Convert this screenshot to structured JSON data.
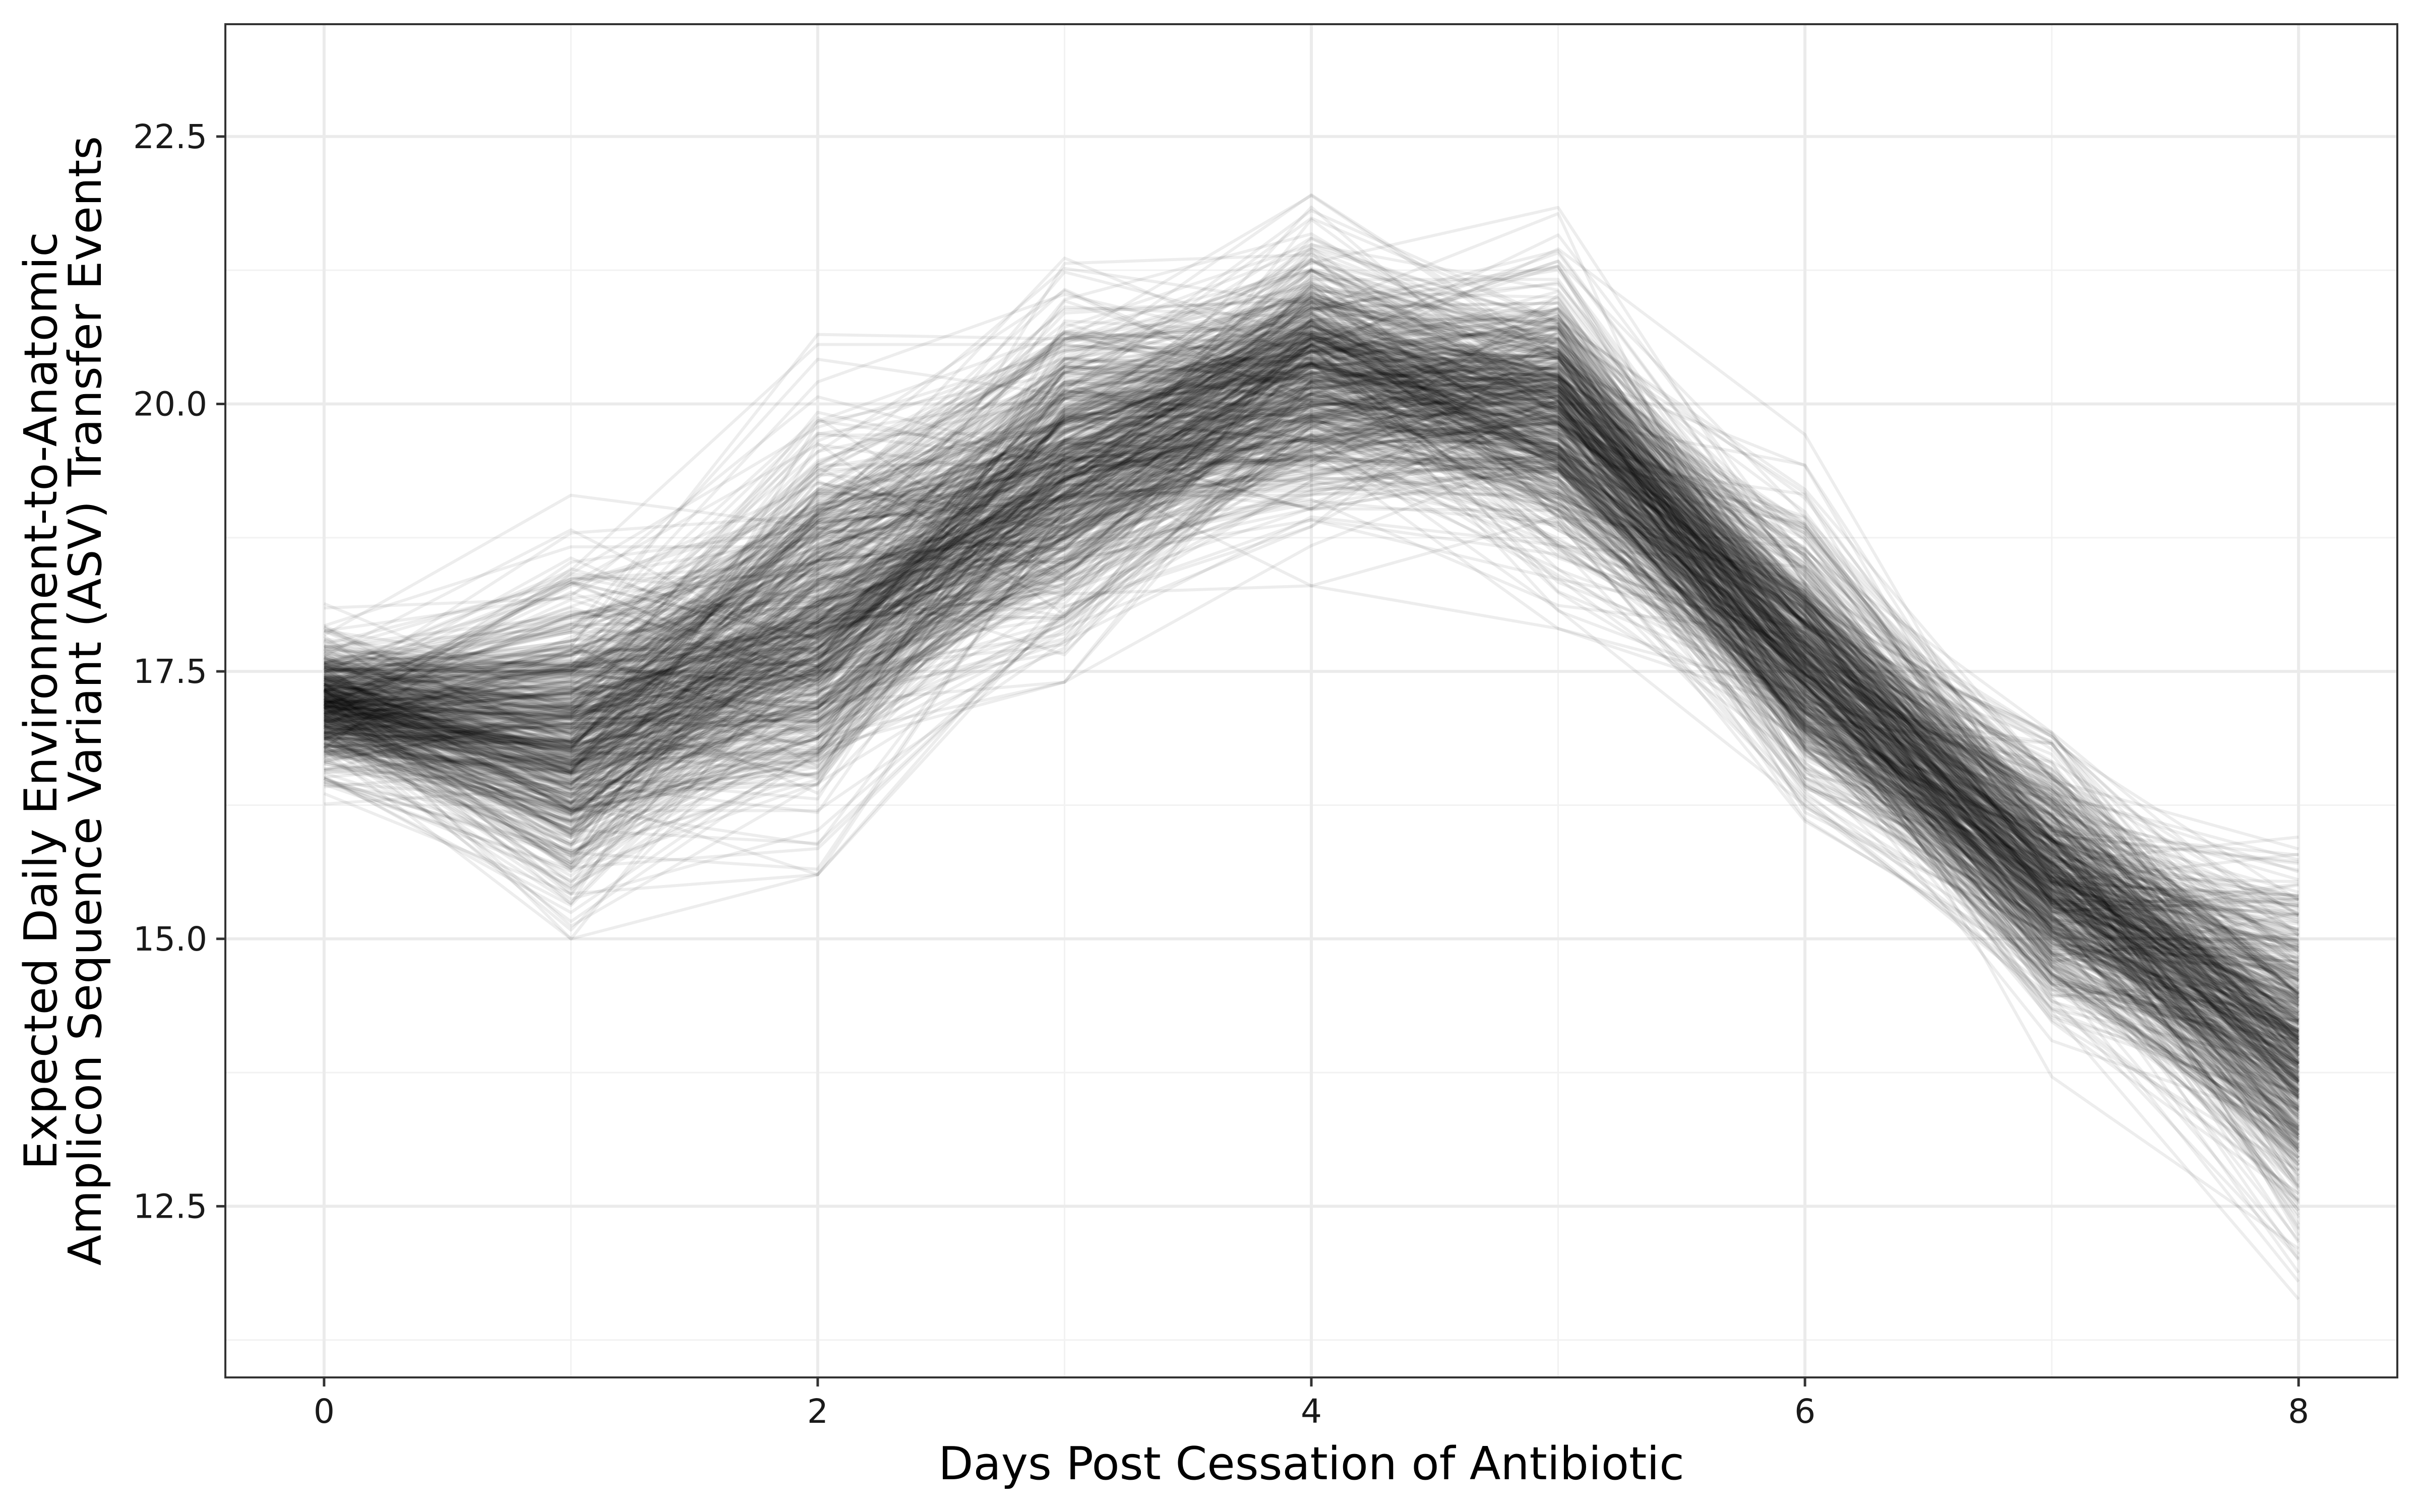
{
  "chart_data": {
    "type": "line",
    "title": "",
    "xlabel": "Days Post Cessation of Antibiotic",
    "ylabel_lines": [
      "Expected Daily Environment-to-Anatomic",
      "Amplicon Sequence Variant (ASV) Transfer Events"
    ],
    "x": [
      0,
      1,
      2,
      3,
      4,
      5,
      6,
      7,
      8
    ],
    "xlim": [
      -0.4,
      8.4
    ],
    "ylim": [
      10.9,
      23.55
    ],
    "x_ticks": [
      0,
      2,
      4,
      6,
      8
    ],
    "x_tick_labels": [
      "0",
      "2",
      "4",
      "6",
      "8"
    ],
    "y_ticks": [
      12.5,
      15.0,
      17.5,
      20.0,
      22.5
    ],
    "y_tick_labels": [
      "12.5",
      "15.0",
      "17.5",
      "20.0",
      "22.5"
    ],
    "x_minor_grid": [
      1,
      3,
      5,
      7
    ],
    "y_minor_grid": [
      11.25,
      13.75,
      16.25,
      18.75,
      21.25
    ],
    "grid": true,
    "legend": "none",
    "series_count": 600,
    "series_summary": {
      "mean": [
        17.2,
        16.9,
        18.0,
        19.35,
        20.3,
        19.9,
        17.6,
        15.55,
        13.95
      ],
      "spread_sd": [
        0.28,
        0.7,
        0.85,
        0.7,
        0.6,
        0.65,
        0.6,
        0.55,
        0.8
      ],
      "min_envelope": [
        16.2,
        15.0,
        15.6,
        17.4,
        18.3,
        17.9,
        16.1,
        13.0,
        11.3
      ],
      "max_envelope": [
        18.2,
        19.4,
        20.9,
        22.1,
        22.8,
        22.5,
        20.2,
        17.9,
        16.9
      ]
    },
    "colors": {
      "line": "#000000",
      "line_opacity": 0.07,
      "grid_major": "#ebebeb",
      "grid_minor": "#f2f2f2",
      "panel_border": "#333333",
      "tick": "#333333"
    }
  }
}
